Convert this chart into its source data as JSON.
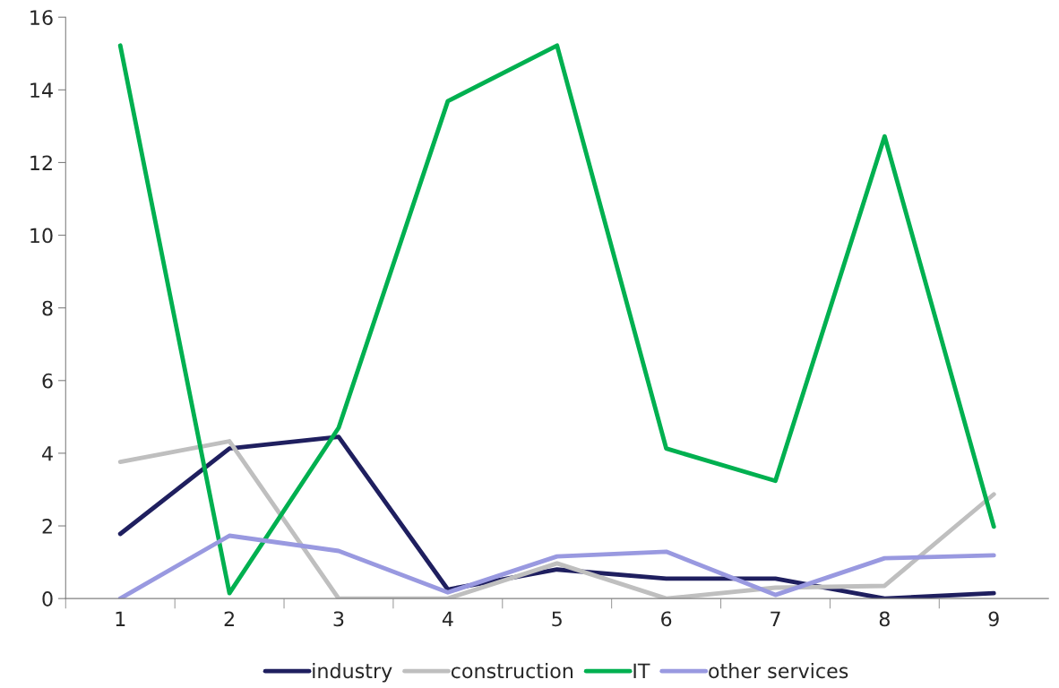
{
  "chart_data": {
    "type": "line",
    "categories": [
      "1",
      "2",
      "3",
      "4",
      "5",
      "6",
      "7",
      "8",
      "9"
    ],
    "series": [
      {
        "name": "industry",
        "color": "#1f1f5f",
        "values": [
          1.78,
          4.13,
          4.45,
          0.25,
          0.8,
          0.55,
          0.55,
          0,
          0.15
        ]
      },
      {
        "name": "construction",
        "color": "#bfbfbf",
        "values": [
          3.76,
          4.33,
          0,
          0,
          0.97,
          0,
          0.3,
          0.35,
          2.87
        ]
      },
      {
        "name": "IT",
        "color": "#00b050",
        "values": [
          15.22,
          0.15,
          4.7,
          13.69,
          15.22,
          4.13,
          3.24,
          12.72,
          1.98
        ]
      },
      {
        "name": "other services",
        "color": "#9999e0",
        "values": [
          0,
          1.73,
          1.31,
          0.17,
          1.16,
          1.29,
          0.1,
          1.11,
          1.19
        ]
      }
    ],
    "ylim": [
      0,
      16
    ],
    "yticks": [
      0,
      2,
      4,
      6,
      8,
      10,
      12,
      14,
      16
    ],
    "grid": false,
    "legend": "bottom",
    "marker": "none",
    "line_style": "solid"
  }
}
